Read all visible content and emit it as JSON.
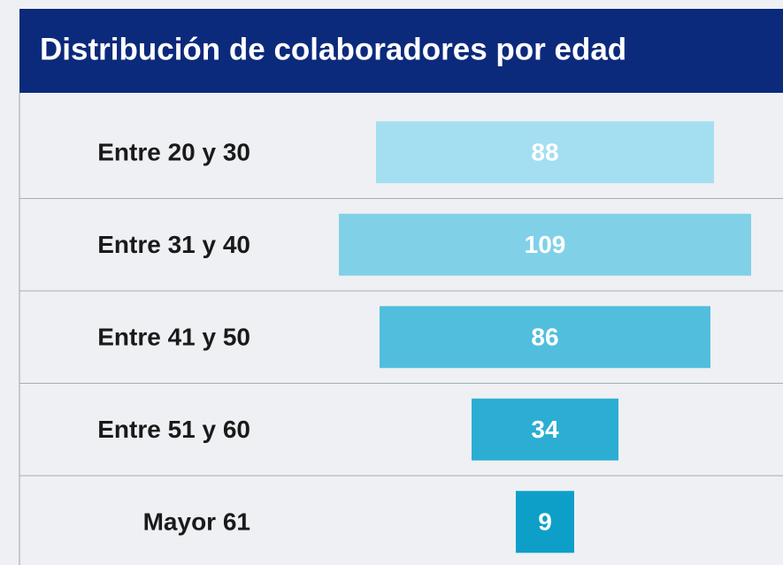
{
  "chart_data": {
    "type": "funnel",
    "title": "Distribución de colaboradores por edad",
    "categories": [
      "Entre 20 y 30",
      "Entre 31 y 40",
      "Entre 41 y 50",
      "Entre 51 y 60",
      "Mayor 61"
    ],
    "values": [
      88,
      109,
      86,
      34,
      9
    ],
    "colors": [
      "#a3dff0",
      "#80d1e7",
      "#52bedd",
      "#2caed3",
      "#0e9fc9"
    ]
  }
}
